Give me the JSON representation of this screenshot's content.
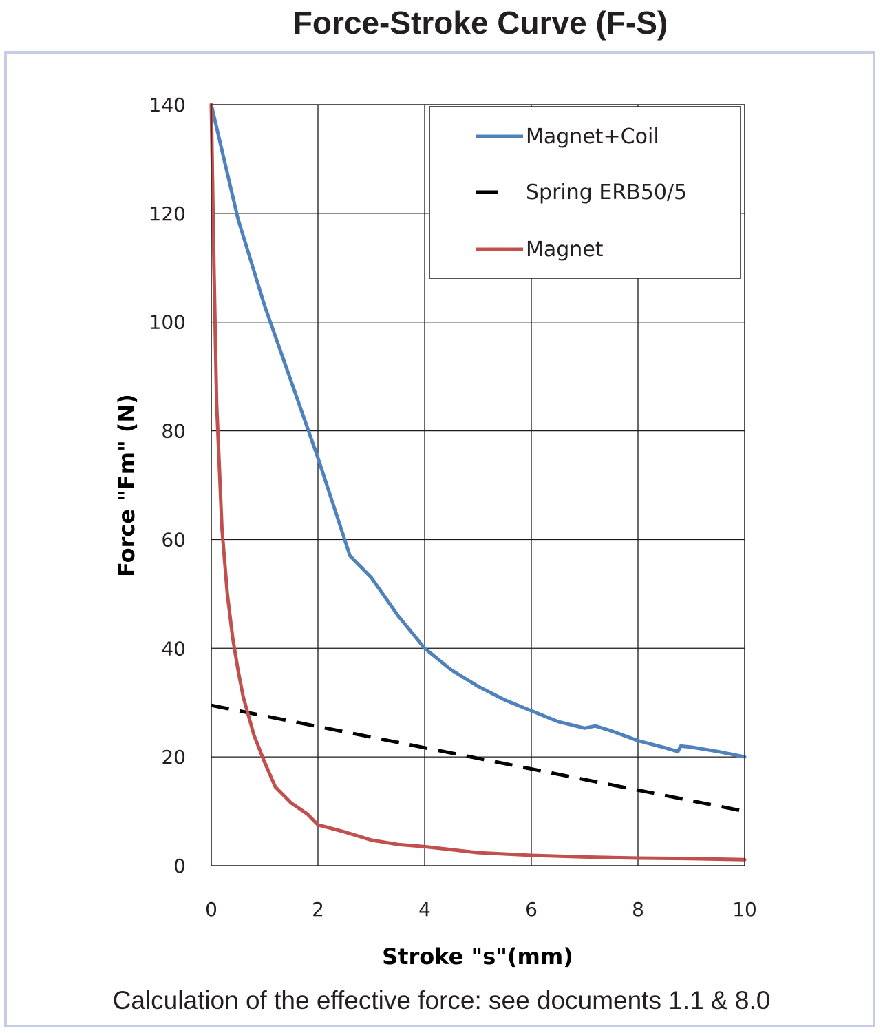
{
  "page": {
    "title": "Force-Stroke Curve (F-S)",
    "footnote": "Calculation of the effective force: see documents 1.1 & 8.0"
  },
  "chart_data": {
    "type": "line",
    "title": "Force-Stroke Curve (F-S)",
    "xlabel": "Stroke \"s\"(mm)",
    "ylabel": "Force \"Fm\" (N)",
    "xlim": [
      0,
      10
    ],
    "ylim": [
      0,
      140
    ],
    "xticks": [
      0,
      2,
      4,
      6,
      8,
      10
    ],
    "yticks": [
      0,
      20,
      40,
      60,
      80,
      100,
      120,
      140
    ],
    "grid": true,
    "legend_position": "top-right",
    "series": [
      {
        "name": "Magnet+Coil",
        "color": "#4f81bd",
        "style": "solid",
        "x": [
          0,
          0.5,
          1.0,
          1.5,
          2.0,
          2.3,
          2.6,
          2.8,
          3.0,
          3.5,
          4.0,
          4.5,
          5.0,
          5.5,
          6.0,
          6.5,
          7.0,
          7.2,
          7.5,
          8.0,
          8.5,
          8.75,
          8.8,
          9.0,
          9.5,
          10.0
        ],
        "y": [
          140,
          119,
          103,
          89,
          75,
          66,
          57,
          55,
          53,
          46,
          40,
          36,
          33,
          30.5,
          28.5,
          26.5,
          25.3,
          25.7,
          24.8,
          23,
          21.7,
          21,
          22,
          21.8,
          21,
          20
        ]
      },
      {
        "name": "Spring ERB50/5",
        "color": "#000000",
        "style": "dashed",
        "x": [
          0,
          10
        ],
        "y": [
          29.5,
          10
        ]
      },
      {
        "name": "Magnet",
        "color": "#c0504d",
        "style": "solid",
        "x": [
          0,
          0.05,
          0.1,
          0.2,
          0.3,
          0.4,
          0.5,
          0.6,
          0.8,
          1.0,
          1.2,
          1.5,
          1.8,
          2.0,
          2.5,
          3.0,
          3.5,
          4.0,
          5.0,
          6.0,
          7.0,
          8.0,
          9.0,
          10.0
        ],
        "y": [
          140,
          110,
          85,
          62,
          50,
          42,
          36,
          31,
          24,
          19,
          14.5,
          11.5,
          9.5,
          7.5,
          6.2,
          4.7,
          3.9,
          3.5,
          2.4,
          1.9,
          1.6,
          1.4,
          1.3,
          1.1
        ]
      }
    ]
  }
}
